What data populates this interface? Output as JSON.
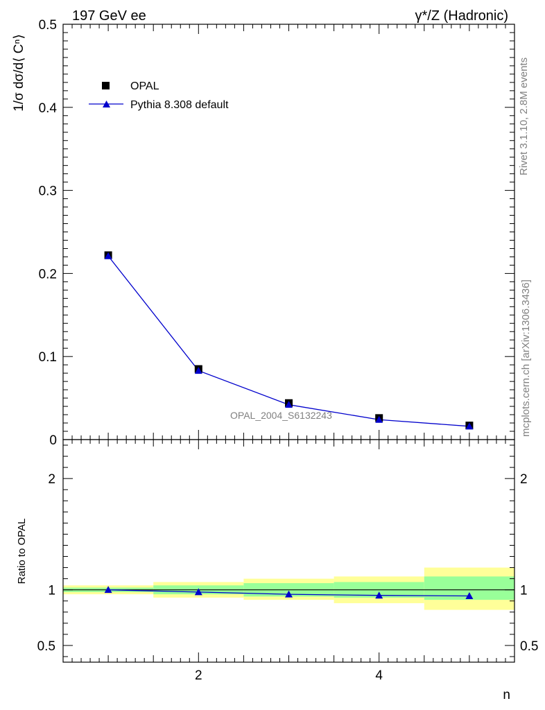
{
  "header": {
    "left": "197 GeV ee",
    "right": "γ*/Z (Hadronic)"
  },
  "side_labels": {
    "rivet": "Rivet 3.1.10,  2.8M events",
    "mcplots": "mcplots.cern.ch [arXiv:1306.3436]"
  },
  "watermark": "OPAL_2004_S6132243",
  "colors": {
    "data": "#000000",
    "mc": "#0000cc",
    "band_inner": "#99ff99",
    "band_outer": "#ffff99"
  },
  "chart_data": [
    {
      "type": "scatter",
      "ylabel": "1/σ dσ/d⟨ Cⁿ⟩",
      "xlabel": "n",
      "xlim": [
        0.5,
        5.5
      ],
      "ylim": [
        0,
        0.5
      ],
      "y_ticks": [
        "0",
        "0.1",
        "0.2",
        "0.3",
        "0.4",
        "0.5"
      ],
      "x_ticks": [
        "2",
        "4"
      ],
      "legend_position": "top-left",
      "series": [
        {
          "name": "OPAL",
          "marker": "square",
          "x": [
            1,
            2,
            3,
            4,
            5
          ],
          "y": [
            0.222,
            0.085,
            0.044,
            0.026,
            0.017
          ]
        },
        {
          "name": "Pythia 8.308 default",
          "marker": "triangle",
          "x": [
            1,
            2,
            3,
            4,
            5
          ],
          "y": [
            0.221,
            0.083,
            0.042,
            0.024,
            0.016
          ]
        }
      ]
    },
    {
      "type": "line",
      "ylabel": "Ratio to OPAL",
      "xlabel": "n",
      "xlim": [
        0.5,
        5.5
      ],
      "ylim": [
        0.35,
        2.35
      ],
      "y_ticks": [
        "0.5",
        "1",
        "2"
      ],
      "x_ticks": [
        "2",
        "4"
      ],
      "bands": [
        {
          "xlo": 0.5,
          "xhi": 1.5,
          "inner": [
            0.98,
            1.02
          ],
          "outer": [
            0.96,
            1.04
          ]
        },
        {
          "xlo": 1.5,
          "xhi": 2.5,
          "inner": [
            0.96,
            1.04
          ],
          "outer": [
            0.93,
            1.07
          ]
        },
        {
          "xlo": 2.5,
          "xhi": 3.5,
          "inner": [
            0.94,
            1.06
          ],
          "outer": [
            0.91,
            1.1
          ]
        },
        {
          "xlo": 3.5,
          "xhi": 4.5,
          "inner": [
            0.93,
            1.07
          ],
          "outer": [
            0.88,
            1.12
          ]
        },
        {
          "xlo": 4.5,
          "xhi": 5.5,
          "inner": [
            0.91,
            1.12
          ],
          "outer": [
            0.82,
            1.2
          ]
        }
      ],
      "series": [
        {
          "name": "Pythia 8.308 default",
          "x": [
            1,
            2,
            3,
            4,
            5
          ],
          "y": [
            1.0,
            0.98,
            0.96,
            0.95,
            0.945
          ]
        }
      ]
    }
  ]
}
